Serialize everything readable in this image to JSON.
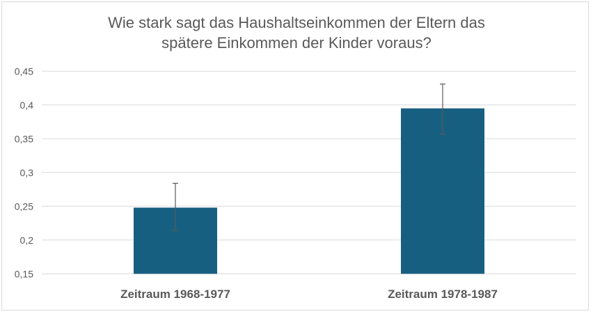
{
  "chart_data": {
    "type": "bar",
    "title_lines": [
      "Wie stark sagt das Haushaltseinkommen der Eltern das",
      "spätere Einkommen der Kinder voraus?"
    ],
    "categories": [
      "Zeitraum 1968-1977",
      "Zeitraum 1978-1987"
    ],
    "values": [
      0.248,
      0.395
    ],
    "error_bars": [
      {
        "low": 0.214,
        "high": 0.284
      },
      {
        "low": 0.357,
        "high": 0.431
      }
    ],
    "xlabel": "",
    "ylabel": "",
    "ylim": [
      0.15,
      0.45
    ],
    "yticks": [
      0.15,
      0.2,
      0.25,
      0.3,
      0.35,
      0.4,
      0.45
    ],
    "ytick_labels": [
      "0,15",
      "0,2",
      "0,25",
      "0,3",
      "0,35",
      "0,4",
      "0,45"
    ],
    "grid": true,
    "legend": "none",
    "bar_color": "#175f81",
    "error_color": "#595959"
  }
}
